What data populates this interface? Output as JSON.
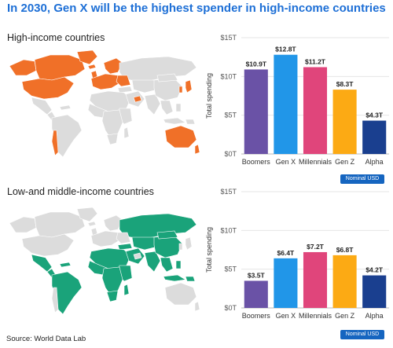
{
  "title": "In 2030, Gen X will be the highest spender in high-income countries",
  "source": "Source: World Data Lab",
  "colors": {
    "title": "#1d6fd6",
    "high_income_map": "#f07028",
    "low_middle_map": "#1aa37a",
    "map_other": "#dcdcdc",
    "Boomers": "#6a52a6",
    "Gen X": "#2196e8",
    "Millennials": "#e0457b",
    "Gen Z": "#fcaa14",
    "Alpha": "#1a3f8f"
  },
  "icons": {
    "high_income_map": "world-map-icon",
    "low_middle_map": "world-map-icon"
  },
  "chart_data": [
    {
      "type": "bar",
      "region_label": "High-income countries",
      "categories": [
        "Boomers",
        "Gen X",
        "Millennials",
        "Gen Z",
        "Alpha"
      ],
      "values": [
        10.9,
        12.8,
        11.2,
        8.3,
        4.3
      ],
      "value_labels": [
        "$10.9T",
        "$12.8T",
        "$11.2T",
        "$8.3T",
        "$4.3T"
      ],
      "ylabel": "Total spending",
      "ylim": [
        0,
        15
      ],
      "yticks": [
        0,
        5,
        10,
        15
      ],
      "ytick_labels": [
        "$0T",
        "$5T",
        "$10T",
        "$15T"
      ],
      "grid": true,
      "note": "Nominal USD"
    },
    {
      "type": "bar",
      "region_label": "Low-and middle-income countries",
      "categories": [
        "Boomers",
        "Gen X",
        "Millennials",
        "Gen Z",
        "Alpha"
      ],
      "values": [
        3.5,
        6.4,
        7.2,
        6.8,
        4.2
      ],
      "value_labels": [
        "$3.5T",
        "$6.4T",
        "$7.2T",
        "$6.8T",
        "$4.2T"
      ],
      "ylabel": "Total spending",
      "ylim": [
        0,
        15
      ],
      "yticks": [
        0,
        5,
        10,
        15
      ],
      "ytick_labels": [
        "$0T",
        "$5T",
        "$10T",
        "$15T"
      ],
      "grid": true,
      "note": "Nominal USD"
    }
  ]
}
